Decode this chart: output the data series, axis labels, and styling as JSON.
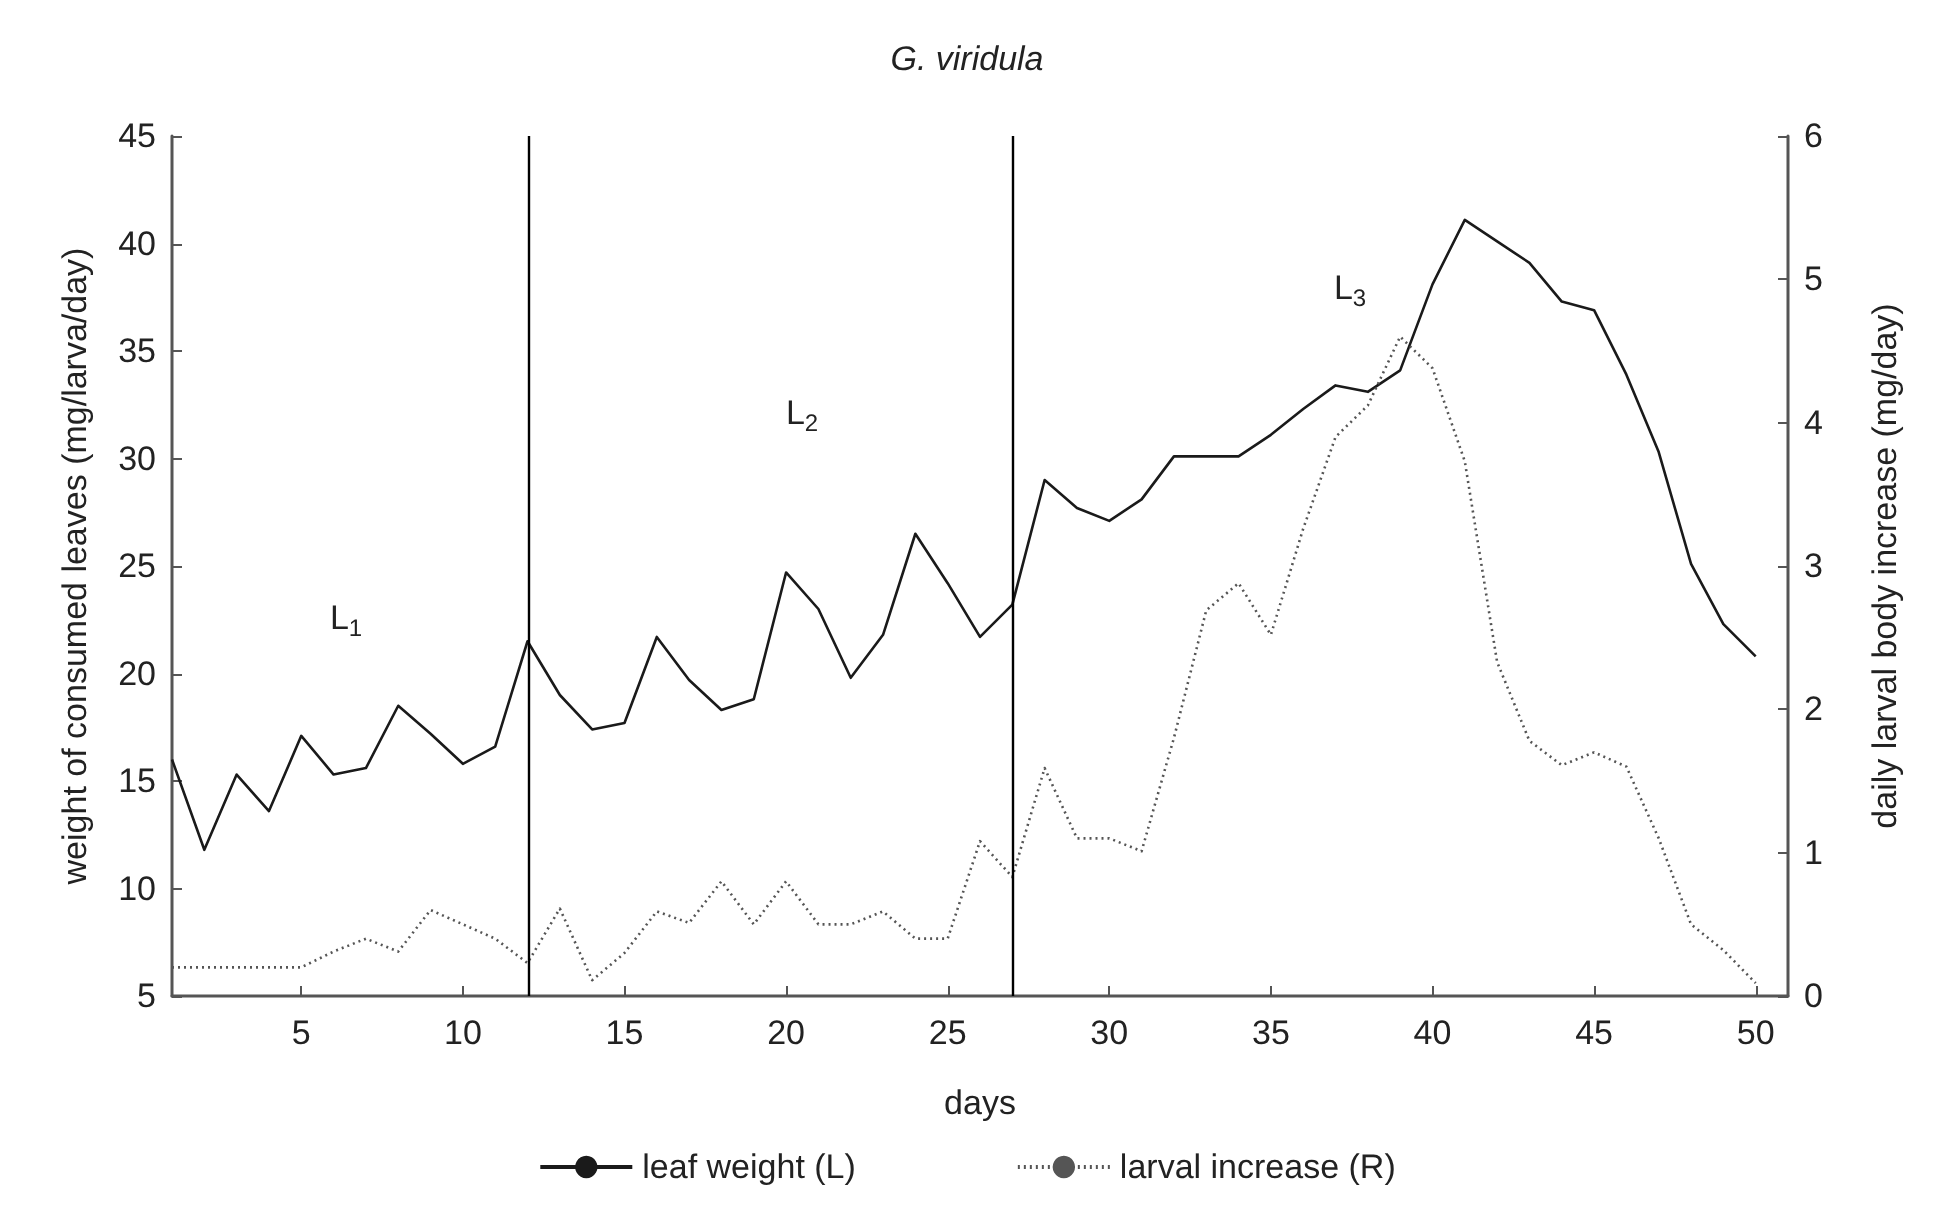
{
  "chart_data": {
    "type": "line",
    "title": "G. viridula",
    "xlabel": "days",
    "ylabel": "weight of consumed leaves (mg/larva/day)",
    "y2label": "daily larval body increase (mg/day)",
    "x": [
      1,
      2,
      3,
      4,
      5,
      6,
      7,
      8,
      9,
      10,
      11,
      12,
      13,
      14,
      15,
      16,
      17,
      18,
      19,
      20,
      21,
      22,
      23,
      24,
      25,
      26,
      27,
      28,
      29,
      30,
      31,
      32,
      33,
      34,
      35,
      36,
      37,
      38,
      39,
      40,
      41,
      42,
      43,
      44,
      45,
      46,
      47,
      48,
      49,
      50
    ],
    "series": [
      {
        "name": "leaf weight (L)",
        "color": "#1a1a1a",
        "line_style": "solid",
        "values": [
          16.0,
          11.8,
          15.3,
          13.6,
          17.1,
          15.3,
          15.6,
          18.5,
          17.2,
          15.8,
          16.6,
          21.5,
          19.0,
          17.4,
          17.7,
          21.7,
          19.7,
          18.3,
          18.8,
          24.7,
          23.0,
          19.8,
          21.8,
          26.5,
          24.2,
          21.7,
          23.2,
          29.0,
          27.7,
          27.1,
          28.1,
          30.1,
          30.1,
          30.1,
          31.1,
          32.3,
          33.4,
          33.1,
          34.1,
          38.1,
          41.1,
          40.1,
          39.1,
          37.3,
          36.9,
          33.9,
          30.3,
          25.1,
          22.3,
          20.8
        ]
      },
      {
        "name": "larval increase (R)",
        "color": "#555555",
        "line_style": "dotted",
        "axis": "y2",
        "values": [
          0.2,
          0.2,
          0.2,
          0.2,
          0.2,
          0.31,
          0.4,
          0.31,
          0.6,
          0.5,
          0.4,
          0.23,
          0.61,
          0.11,
          0.3,
          0.59,
          0.51,
          0.8,
          0.5,
          0.8,
          0.5,
          0.5,
          0.59,
          0.4,
          0.4,
          1.08,
          0.83,
          1.59,
          1.1,
          1.1,
          1.01,
          1.8,
          2.69,
          2.88,
          2.52,
          3.26,
          3.9,
          4.12,
          4.6,
          4.38,
          3.73,
          2.33,
          1.78,
          1.61,
          1.7,
          1.6,
          1.1,
          0.5,
          0.32,
          0.09
        ]
      }
    ],
    "xlim": [
      1,
      51
    ],
    "xticks": [
      5,
      10,
      15,
      20,
      25,
      30,
      35,
      40,
      45,
      50
    ],
    "ylim": [
      5,
      45
    ],
    "yticks": [
      5,
      10,
      15,
      20,
      25,
      30,
      35,
      40,
      45
    ],
    "y2lim": [
      0,
      6
    ],
    "y2ticks": [
      0,
      1,
      2,
      3,
      4,
      5,
      6
    ],
    "ref_lines": [
      {
        "axis": "x",
        "value": 12,
        "color": "#000000"
      },
      {
        "axis": "x",
        "value": 27,
        "color": "#000000"
      }
    ],
    "annotations": [
      "L$_{1}$",
      "L$_{2}$",
      "L$_{3}$"
    ],
    "legend": "bottom",
    "grid": false
  }
}
